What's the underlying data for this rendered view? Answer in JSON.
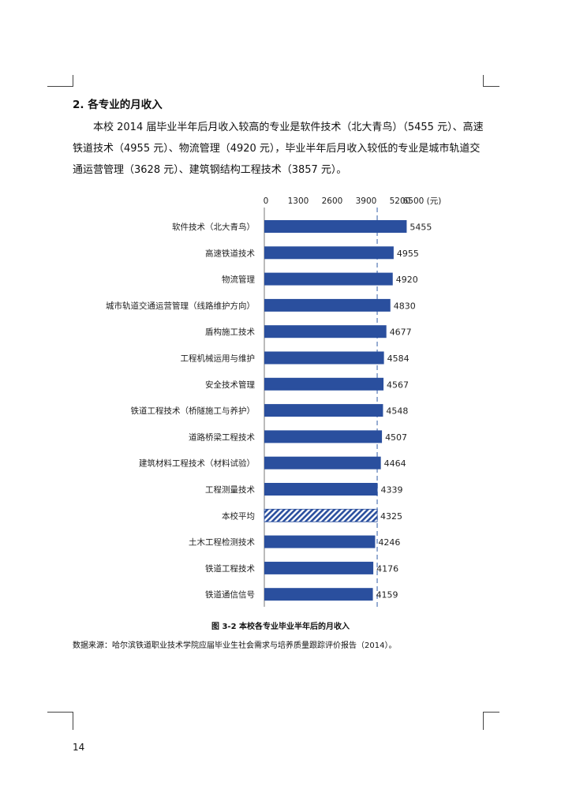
{
  "section": {
    "heading": "2.  各专业的月收入",
    "paragraph": "本校 2014 届毕业半年后月收入较高的专业是软件技术（北大青鸟）（5455 元）、高速铁道技术（4955 元）、物流管理（4920 元），毕业半年后月收入较低的专业是城市轨道交通运营管理（3628 元）、建筑钢结构工程技术（3857 元）。"
  },
  "chart_data": {
    "type": "bar",
    "orientation": "horizontal",
    "axis_ticks": [
      "0",
      "1300",
      "2600",
      "3900",
      "5200",
      "6500 (元)"
    ],
    "xlim": [
      0,
      6500
    ],
    "average_line": 4325,
    "bar_color": "#2a4f9e",
    "categories": [
      "软件技术（北大青鸟）",
      "高速铁道技术",
      "物流管理",
      "城市轨道交通运营管理（线路维护方向）",
      "盾构施工技术",
      "工程机械运用与维护",
      "安全技术管理",
      "铁道工程技术（桥隧施工与养护）",
      "道路桥梁工程技术",
      "建筑材料工程技术（材料试验）",
      "工程测量技术",
      "本校平均",
      "土木工程检测技术",
      "铁道工程技术",
      "铁道通信信号"
    ],
    "values": [
      5455,
      4955,
      4920,
      4830,
      4677,
      4584,
      4567,
      4548,
      4507,
      4464,
      4339,
      4325,
      4246,
      4176,
      4159
    ],
    "hatched_category": "本校平均"
  },
  "caption": "图 3-2  本校各专业毕业半年后的月收入",
  "source": "数据来源：哈尔滨铁道职业技术学院应届毕业生社会需求与培养质量跟踪评价报告（2014）。",
  "page_number": "14"
}
